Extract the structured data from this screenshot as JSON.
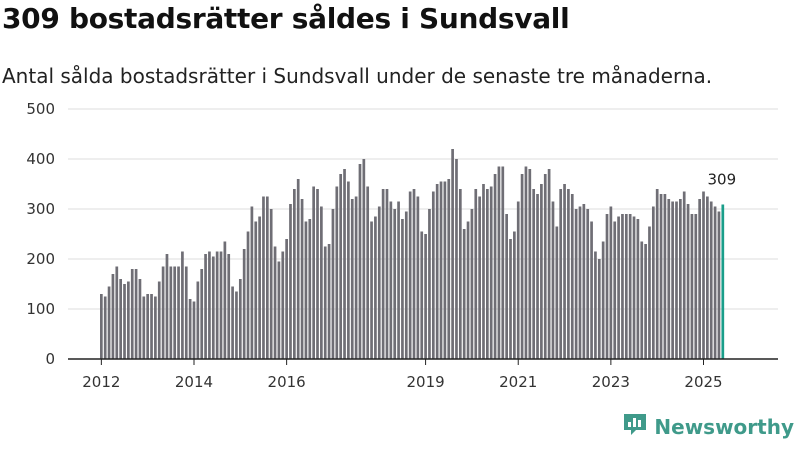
{
  "title": "309 bostadsrätter såldes i Sundsvall",
  "subtitle": "Antal sålda bostadsrätter i Sundsvall under de senaste tre månaderna.",
  "brand": {
    "name": "Newsworthy",
    "color": "#3f9a8a",
    "icon": "newsworthy-chart-icon"
  },
  "colors": {
    "bar": "#6f6e75",
    "highlight": "#1a9e8a",
    "grid": "#dddddd"
  },
  "chart_data": {
    "type": "bar",
    "title": "309 bostadsrätter såldes i Sundsvall",
    "subtitle": "Antal sålda bostadsrätter i Sundsvall under de senaste tre månaderna.",
    "xlabel": "",
    "ylabel": "",
    "ylim": [
      0,
      500
    ],
    "yticks": [
      0,
      100,
      200,
      300,
      400,
      500
    ],
    "xticks": [
      {
        "label": "2012",
        "year": 2012
      },
      {
        "label": "2014",
        "year": 2014
      },
      {
        "label": "2016",
        "year": 2016
      },
      {
        "label": "2019",
        "year": 2019
      },
      {
        "label": "2021",
        "year": 2021
      },
      {
        "label": "2023",
        "year": 2023
      },
      {
        "label": "2025",
        "year": 2025
      }
    ],
    "start": "2012-01",
    "end": "2025-10",
    "grid": true,
    "highlight_last": true,
    "last_value_label": "309",
    "values": [
      130,
      125,
      145,
      170,
      185,
      160,
      150,
      155,
      180,
      180,
      160,
      125,
      130,
      130,
      125,
      155,
      185,
      210,
      185,
      185,
      185,
      215,
      185,
      120,
      115,
      155,
      180,
      210,
      215,
      205,
      215,
      215,
      235,
      210,
      145,
      135,
      160,
      220,
      255,
      305,
      275,
      285,
      325,
      325,
      300,
      225,
      195,
      215,
      240,
      310,
      340,
      360,
      320,
      275,
      280,
      345,
      340,
      305,
      225,
      230,
      300,
      345,
      370,
      380,
      355,
      320,
      325,
      390,
      400,
      345,
      275,
      285,
      305,
      340,
      340,
      315,
      300,
      315,
      280,
      295,
      335,
      340,
      325,
      255,
      250,
      300,
      335,
      350,
      355,
      355,
      360,
      420,
      400,
      340,
      260,
      275,
      300,
      340,
      325,
      350,
      340,
      345,
      370,
      385,
      385,
      290,
      240,
      255,
      315,
      370,
      385,
      380,
      340,
      330,
      350,
      370,
      380,
      315,
      265,
      340,
      350,
      340,
      330,
      300,
      305,
      310,
      300,
      275,
      215,
      200,
      235,
      290,
      305,
      275,
      285,
      290,
      290,
      290,
      285,
      280,
      235,
      230,
      265,
      305,
      340,
      330,
      330,
      320,
      315,
      315,
      320,
      335,
      310,
      290,
      290,
      320,
      335,
      325,
      315,
      305,
      295,
      309
    ]
  }
}
